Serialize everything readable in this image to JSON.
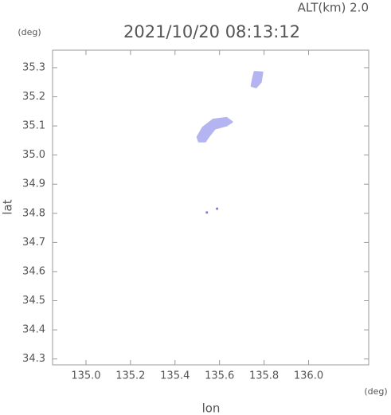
{
  "chart_data": {
    "type": "area",
    "title": "2021/10/20 08:13:12",
    "annotation": "ALT(km) 2.0",
    "y_unit": "(deg)",
    "x_unit": "(deg)",
    "x_label": "lon",
    "y_label": "lat",
    "xlim": [
      134.85,
      136.27
    ],
    "ylim": [
      34.28,
      35.36
    ],
    "xticks": [
      {
        "value": 135,
        "label": "135.0"
      },
      135.2,
      135.4,
      135.6,
      135.8,
      {
        "value": 136,
        "label": "136.0"
      }
    ],
    "yticks": [
      34.3,
      34.4,
      34.5,
      34.6,
      34.7,
      34.8,
      34.9,
      {
        "value": 35,
        "label": "35.0"
      },
      35.1,
      35.2,
      35.3
    ],
    "series": [
      {
        "color": "#b4b4f0",
        "x": [
          135.5,
          135.525,
          135.571,
          135.632,
          135.657,
          135.632,
          135.579,
          135.55,
          135.536,
          135.507
        ],
        "values": [
          35.062,
          35.095,
          35.122,
          35.128,
          35.114,
          35.101,
          35.09,
          35.062,
          35.046,
          35.046
        ]
      },
      {
        "color": "#b4b4f0",
        "x": [
          135.757,
          135.793,
          135.786,
          135.764,
          135.743,
          135.75
        ],
        "values": [
          35.286,
          35.284,
          35.251,
          35.232,
          35.237,
          35.264
        ]
      },
      {
        "color": "#7878d8",
        "x": [
          135.543,
          135.589
        ],
        "values": [
          34.803,
          34.816
        ]
      }
    ]
  }
}
